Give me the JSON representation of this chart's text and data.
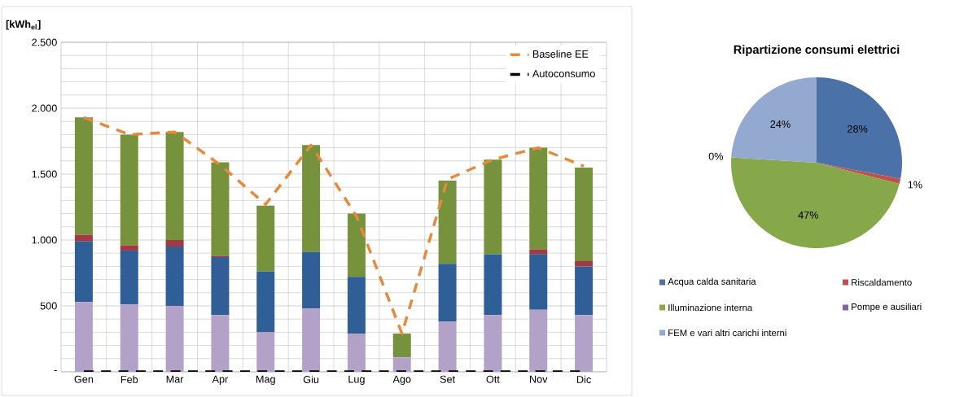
{
  "chart_data": [
    {
      "type": "bar",
      "stacked": true,
      "ylabel": "[kWh$_{el}$]",
      "categories": [
        "Gen",
        "Feb",
        "Mar",
        "Apr",
        "Mag",
        "Giu",
        "Lug",
        "Ago",
        "Set",
        "Ott",
        "Nov",
        "Dic"
      ],
      "ylim": [
        0,
        2500
      ],
      "yticks": [
        {
          "value": 0,
          "label": "-"
        },
        {
          "value": 500,
          "label": "500"
        },
        {
          "value": 1000,
          "label": "1.000"
        },
        {
          "value": 1500,
          "label": "1.500"
        },
        {
          "value": 2000,
          "label": "2.000"
        },
        {
          "value": 2500,
          "label": "2.500"
        }
      ],
      "grid": true,
      "legend": "top right",
      "series": [
        {
          "color": "#b3a2c7",
          "values": [
            530,
            510,
            500,
            430,
            300,
            480,
            290,
            110,
            380,
            430,
            470,
            430
          ]
        },
        {
          "color": "#2f5f96",
          "values": [
            460,
            410,
            450,
            440,
            460,
            430,
            430,
            0,
            440,
            460,
            420,
            370
          ]
        },
        {
          "color": "#a23a45",
          "values": [
            50,
            40,
            50,
            10,
            0,
            0,
            0,
            0,
            0,
            0,
            40,
            40
          ]
        },
        {
          "color": "#76923c",
          "values": [
            890,
            840,
            820,
            710,
            500,
            810,
            480,
            180,
            630,
            720,
            770,
            710
          ]
        },
        {
          "type": "line",
          "name": "Baseline EE",
          "color": "#e58a3c",
          "line_style": "dashed",
          "values": [
            1930,
            1800,
            1820,
            1570,
            1270,
            1720,
            1180,
            290,
            1460,
            1610,
            1700,
            1560
          ]
        },
        {
          "type": "line",
          "name": "Autoconsumo",
          "color": "#000000",
          "line_style": "dashed",
          "values": [
            0,
            0,
            0,
            0,
            0,
            0,
            0,
            0,
            0,
            0,
            0,
            0
          ]
        }
      ]
    },
    {
      "type": "pie",
      "title": "Ripartizione consumi elettrici",
      "categories": [
        "Acqua calda sanitaria",
        "Riscaldamento",
        "Illuminazione interna",
        "Pompe e ausiliari",
        "FEM e vari altri carichi interni"
      ],
      "values": [
        28,
        1,
        47,
        0,
        24
      ],
      "colors": [
        "#4a72a8",
        "#c0504d",
        "#86a84a",
        "#8064a2",
        "#93a9cf"
      ],
      "value_labels": [
        "28%",
        "1%",
        "47%",
        "0%",
        "24%"
      ],
      "legend": "bottom"
    }
  ]
}
